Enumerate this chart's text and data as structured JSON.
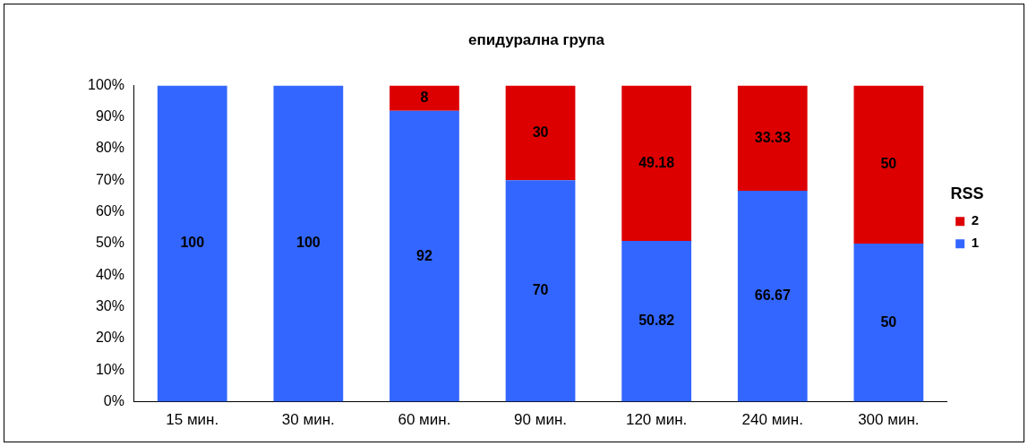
{
  "chart_data": {
    "type": "bar",
    "title": "епидурална група",
    "stacked": true,
    "categories": [
      "15 мин.",
      "30 мин.",
      "60 мин.",
      "90 мин.",
      "120 мин.",
      "240 мин.",
      "300 мин."
    ],
    "series": [
      {
        "name": "1",
        "color": "#3366ff",
        "values": [
          100,
          100,
          92,
          70,
          50.82,
          66.67,
          50
        ]
      },
      {
        "name": "2",
        "color": "#dd0000",
        "values": [
          null,
          null,
          8,
          30,
          49.18,
          33.33,
          50
        ]
      }
    ],
    "ylim": [
      0,
      100
    ],
    "yticks": [
      {
        "value": 0,
        "label": "0%"
      },
      {
        "value": 10,
        "label": "10%"
      },
      {
        "value": 20,
        "label": "20%"
      },
      {
        "value": 30,
        "label": "30%"
      },
      {
        "value": 40,
        "label": "40%"
      },
      {
        "value": 50,
        "label": "50%"
      },
      {
        "value": 60,
        "label": "60%"
      },
      {
        "value": 70,
        "label": "70%"
      },
      {
        "value": 80,
        "label": "80%"
      },
      {
        "value": 90,
        "label": "90%"
      },
      {
        "value": 100,
        "label": "100%"
      }
    ],
    "legend": "right",
    "legend_title": "RSS",
    "data_labels": true,
    "grid": false
  }
}
